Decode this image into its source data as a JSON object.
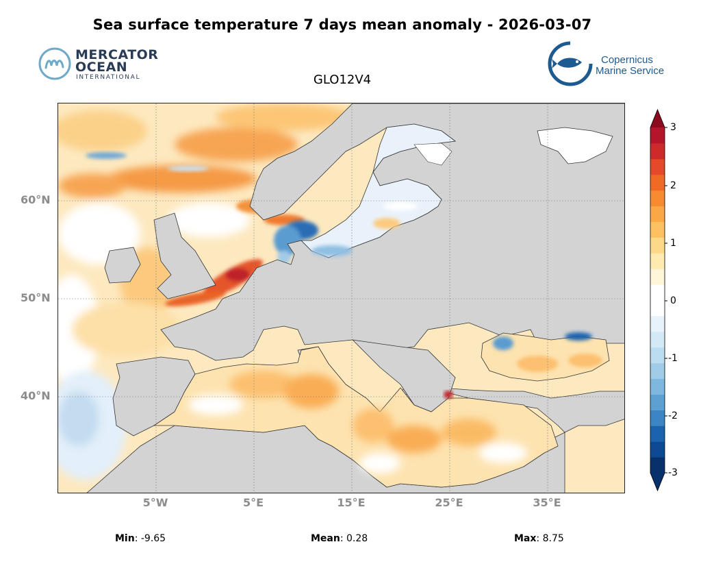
{
  "title": "Sea surface temperature 7 days mean anomaly - 2026-03-07",
  "subtitle": "GLO12V4",
  "logos": {
    "mercator_line1": "MERCATOR",
    "mercator_line2": "OCEAN",
    "mercator_line3": "INTERNATIONAL",
    "copernicus_line1": "Copernicus",
    "copernicus_line2": "Marine Service"
  },
  "map": {
    "lat_ticks": [
      "60°N",
      "50°N",
      "40°N"
    ],
    "lon_ticks": [
      "5°W",
      "5°E",
      "15°E",
      "25°E",
      "35°E"
    ],
    "land_color": "#d3d3d3",
    "grid_color": "#888888"
  },
  "colorbar": {
    "min": -3,
    "max": 3,
    "tick_labels": [
      "3",
      "2",
      "1",
      "0",
      "-1",
      "-2",
      "-3"
    ],
    "extend": "both",
    "colors": [
      "#08306b",
      "#0e4a94",
      "#1b63ad",
      "#3c85c4",
      "#5da0d1",
      "#7fb8de",
      "#a1cce8",
      "#bcdcf0",
      "#d4e9f6",
      "#e8f2fa",
      "#ffffff",
      "#ffffff",
      "#fff5d9",
      "#ffeab0",
      "#fed889",
      "#fec161",
      "#fca745",
      "#f88a30",
      "#f06a25",
      "#e5492a",
      "#cf2a2b",
      "#b5152b"
    ],
    "upper_color": "#8b0a1e",
    "lower_color": "#08306b"
  },
  "stats": {
    "min_label": "Min",
    "min_value": ": -9.65",
    "mean_label": "Mean",
    "mean_value": ": 0.28",
    "max_label": "Max",
    "max_value": ": 8.75"
  }
}
